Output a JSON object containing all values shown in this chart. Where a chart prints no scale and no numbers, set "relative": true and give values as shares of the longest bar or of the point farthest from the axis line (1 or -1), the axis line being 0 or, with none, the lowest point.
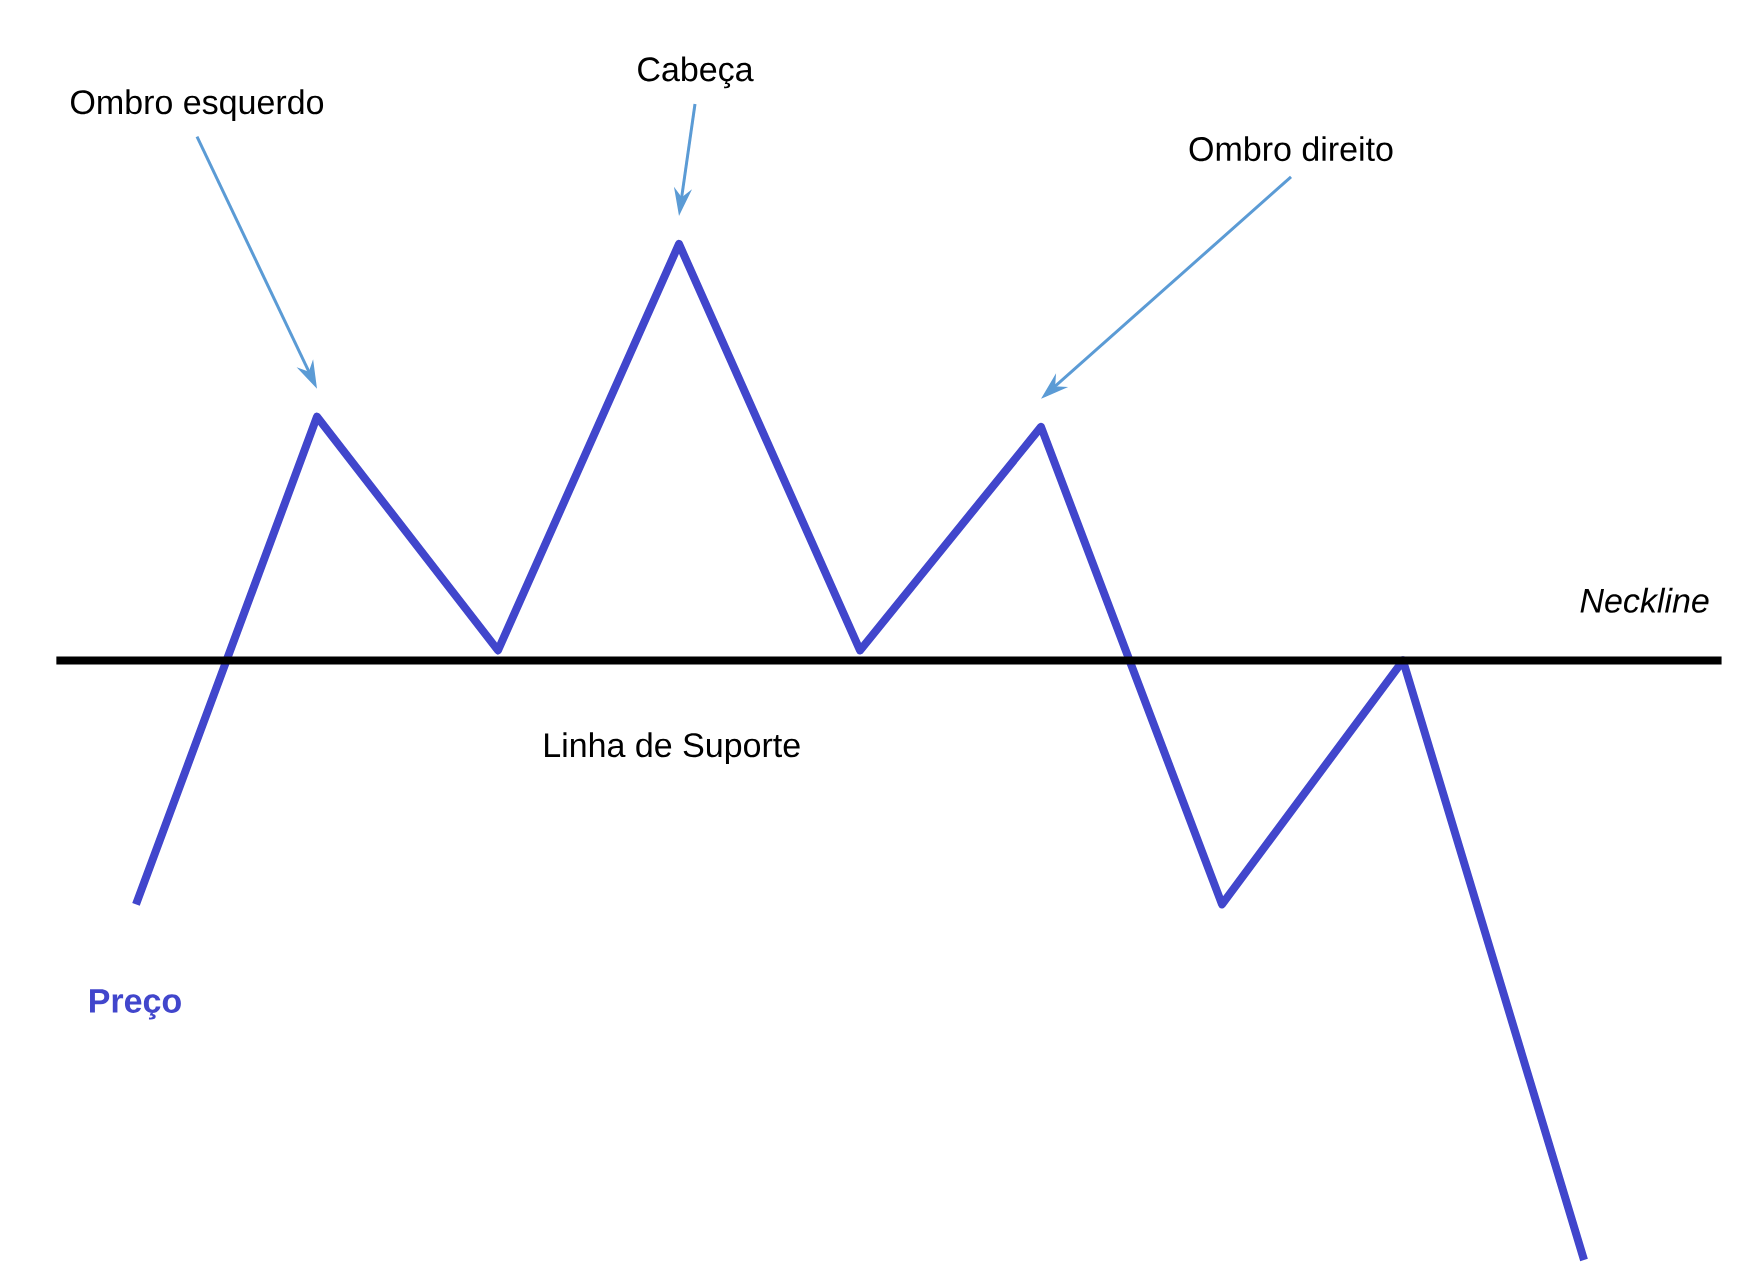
{
  "chart_data": {
    "type": "line",
    "relative": true,
    "categories": [
      null,
      null,
      null,
      null,
      null,
      null,
      null,
      null,
      null
    ],
    "series": [
      {
        "name": "Preço",
        "color": "#4146cc",
        "values": [
          0.35,
          0.83,
          0.6,
          1,
          0.6,
          0.82,
          0.35,
          0.59,
          0
        ]
      }
    ],
    "ref_lines": [
      {
        "axis": "y",
        "value": 0.59,
        "label": "Neckline",
        "color": "#000000"
      }
    ],
    "annotations": [
      "Ombro esquerdo",
      "Cabeça",
      "Ombro direito",
      "Linha de Suporte"
    ],
    "legend": false,
    "marker": "none",
    "line_style": "solid"
  }
}
